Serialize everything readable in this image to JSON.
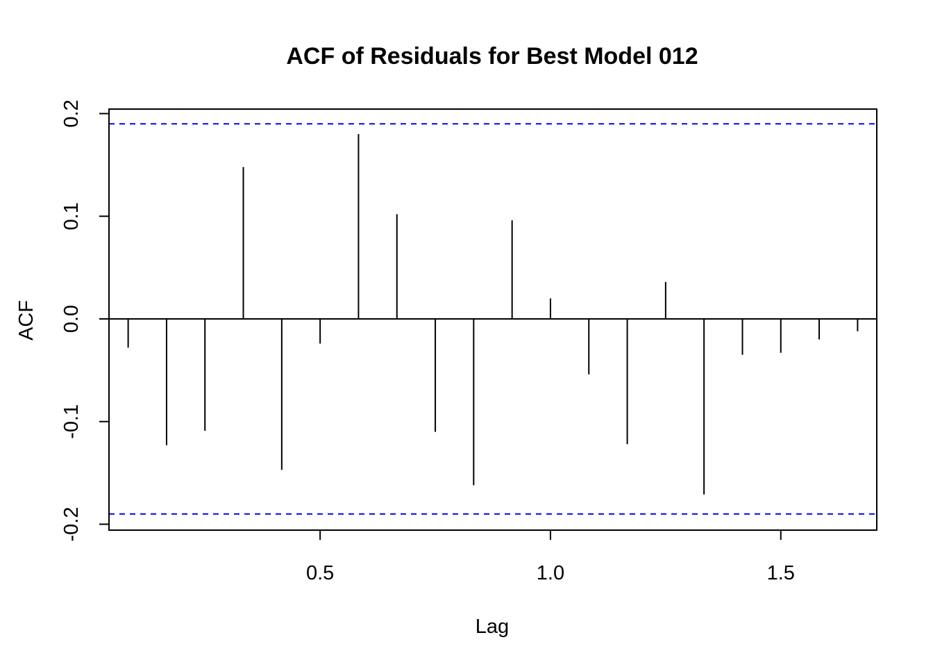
{
  "chart_data": {
    "type": "bar",
    "title": "ACF of Residuals for Best Model 012",
    "xlabel": "Lag",
    "ylabel": "ACF",
    "xlim": [
      0.0417,
      1.7083
    ],
    "ylim": [
      -0.2,
      0.2
    ],
    "x_ticks": [
      0.5,
      1.0,
      1.5
    ],
    "x_tick_labels": [
      "0.5",
      "1.0",
      "1.5"
    ],
    "y_ticks": [
      -0.2,
      -0.1,
      0.0,
      0.1,
      0.2
    ],
    "y_tick_labels": [
      "-0.2",
      "-0.1",
      "0.0",
      "0.1",
      "0.2"
    ],
    "confidence_bound": 0.19,
    "lags": [
      0.0833,
      0.1667,
      0.25,
      0.3333,
      0.4167,
      0.5,
      0.5833,
      0.6667,
      0.75,
      0.8333,
      0.9167,
      1.0,
      1.0833,
      1.1667,
      1.25,
      1.3333,
      1.4167,
      1.5,
      1.5833,
      1.6667
    ],
    "values": [
      -0.028,
      -0.123,
      -0.109,
      0.148,
      -0.147,
      -0.024,
      0.18,
      0.102,
      -0.11,
      -0.162,
      0.096,
      0.02,
      -0.054,
      -0.122,
      0.036,
      -0.171,
      -0.035,
      -0.033,
      -0.02,
      -0.012
    ],
    "grid": false,
    "colors": {
      "bars": "#000000",
      "bounds": "#0000ff",
      "zero_line": "#000000"
    }
  }
}
